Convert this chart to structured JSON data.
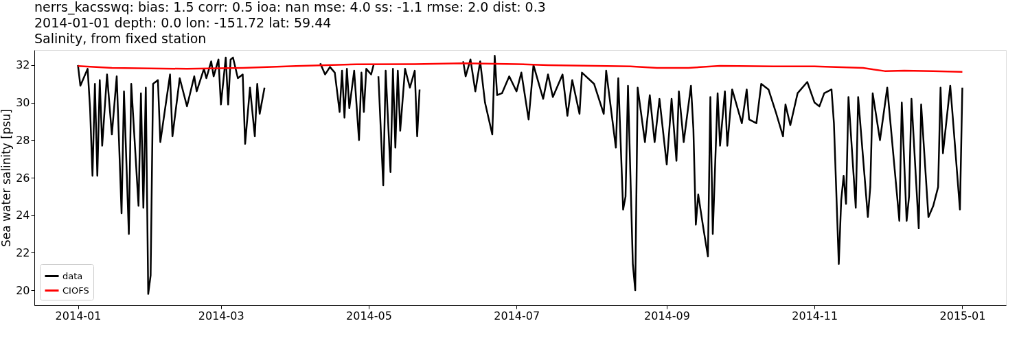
{
  "chart_data": {
    "type": "line",
    "title": "nerrs_kacsswq: bias: 1.5  corr: 0.5  ioa: nan  mse: 4.0  ss: -1.1  rmse: 2.0  dist: 0.3\n2014-01-01 depth: 0.0 lon: -151.72 lat: 59.44\nSalinity, from fixed station",
    "ylabel": "Sea water salinity [psu]",
    "xlim": [
      "2013-12-14",
      "2015-01-19"
    ],
    "ylim": [
      19.2,
      32.8
    ],
    "xticks": [
      {
        "value": "2014-01-01",
        "label": "2014-01"
      },
      {
        "value": "2014-03-01",
        "label": "2014-03"
      },
      {
        "value": "2014-05-01",
        "label": "2014-05"
      },
      {
        "value": "2014-07-01",
        "label": "2014-07"
      },
      {
        "value": "2014-09-01",
        "label": "2014-09"
      },
      {
        "value": "2014-11-01",
        "label": "2014-11"
      },
      {
        "value": "2015-01-01",
        "label": "2015-01"
      }
    ],
    "yticks": [
      20,
      22,
      24,
      26,
      28,
      30,
      32
    ],
    "grid": false,
    "legend": "bottom left",
    "line_style": "solid",
    "marker": "none",
    "series": [
      {
        "name": "data",
        "color": "#000000",
        "x": [
          "2014-01-01",
          "2014-01-02",
          "2014-01-05",
          "2014-01-06",
          "2014-01-07",
          "2014-01-08",
          "2014-01-09",
          "2014-01-10",
          "2014-01-11",
          "2014-01-13",
          "2014-01-15",
          "2014-01-17",
          "2014-01-19",
          "2014-01-20",
          "2014-01-22",
          "2014-01-23",
          "2014-01-26",
          "2014-01-27",
          "2014-01-28",
          "2014-01-29",
          "2014-01-30",
          "2014-01-31",
          "2014-02-01",
          "2014-02-03",
          "2014-02-04",
          "2014-02-08",
          "2014-02-09",
          "2014-02-12",
          "2014-02-15",
          "2014-02-18",
          "2014-02-19",
          "2014-02-22",
          "2014-02-23",
          "2014-02-25",
          "2014-02-26",
          "2014-02-28",
          "2014-03-01",
          "2014-03-03",
          "2014-03-04",
          "2014-03-05",
          "2014-03-06",
          "2014-03-08",
          "2014-03-10",
          "2014-03-11",
          "2014-03-13",
          "2014-03-15",
          "2014-03-16",
          "2014-03-17",
          "2014-03-19",
          "2014-03-20",
          "2014-04-11",
          "2014-04-13",
          "2014-04-15",
          "2014-04-17",
          "2014-04-19",
          "2014-04-20",
          "2014-04-21",
          "2014-04-22",
          "2014-04-23",
          "2014-04-25",
          "2014-04-27",
          "2014-04-28",
          "2014-04-29",
          "2014-04-30",
          "2014-05-02",
          "2014-05-03",
          "2014-05-04",
          "2014-05-05",
          "2014-05-07",
          "2014-05-08",
          "2014-05-10",
          "2014-05-11",
          "2014-05-12",
          "2014-05-13",
          "2014-05-14",
          "2014-05-16",
          "2014-05-18",
          "2014-05-20",
          "2014-05-21",
          "2014-05-22",
          "2014-05-23",
          "2014-06-09",
          "2014-06-10",
          "2014-06-12",
          "2014-06-14",
          "2014-06-16",
          "2014-06-18",
          "2014-06-21",
          "2014-06-22",
          "2014-06-23",
          "2014-06-25",
          "2014-06-28",
          "2014-07-01",
          "2014-07-03",
          "2014-07-06",
          "2014-07-08",
          "2014-07-12",
          "2014-07-14",
          "2014-07-16",
          "2014-07-20",
          "2014-07-22",
          "2014-07-24",
          "2014-07-27",
          "2014-07-28",
          "2014-08-02",
          "2014-08-06",
          "2014-08-07",
          "2014-08-11",
          "2014-08-12",
          "2014-08-14",
          "2014-08-15",
          "2014-08-16",
          "2014-08-18",
          "2014-08-19",
          "2014-08-20",
          "2014-08-23",
          "2014-08-25",
          "2014-08-27",
          "2014-08-29",
          "2014-09-01",
          "2014-09-03",
          "2014-09-05",
          "2014-09-06",
          "2014-09-08",
          "2014-09-11",
          "2014-09-12",
          "2014-09-13",
          "2014-09-14",
          "2014-09-16",
          "2014-09-18",
          "2014-09-19",
          "2014-09-20",
          "2014-09-22",
          "2014-09-23",
          "2014-09-25",
          "2014-09-26",
          "2014-09-28",
          "2014-10-02",
          "2014-10-04",
          "2014-10-05",
          "2014-10-08",
          "2014-10-10",
          "2014-10-13",
          "2014-10-16",
          "2014-10-19",
          "2014-10-20",
          "2014-10-22",
          "2014-10-25",
          "2014-10-29",
          "2014-11-01",
          "2014-11-03",
          "2014-11-05",
          "2014-11-08",
          "2014-11-09",
          "2014-11-11",
          "2014-11-12",
          "2014-11-13",
          "2014-11-14",
          "2014-11-15",
          "2014-11-18",
          "2014-11-19",
          "2014-11-23",
          "2014-11-24",
          "2014-11-25",
          "2014-11-28",
          "2014-12-01",
          "2014-12-06",
          "2014-12-07",
          "2014-12-09",
          "2014-12-10",
          "2014-12-11",
          "2014-12-14",
          "2014-12-15",
          "2014-12-18",
          "2014-12-20",
          "2014-12-22",
          "2014-12-23",
          "2014-12-24",
          "2014-12-27",
          "2014-12-28",
          "2014-12-31",
          "2015-01-01"
        ],
        "values": [
          32.0,
          30.9,
          31.8,
          29.7,
          26.1,
          31.0,
          26.1,
          31.2,
          27.7,
          31.5,
          28.3,
          31.4,
          24.1,
          30.6,
          23.0,
          31.0,
          24.5,
          30.5,
          24.4,
          30.8,
          19.8,
          20.8,
          31.0,
          31.2,
          27.9,
          31.5,
          28.2,
          31.3,
          29.8,
          31.4,
          30.6,
          31.8,
          31.3,
          32.2,
          31.4,
          32.3,
          29.9,
          32.4,
          29.9,
          32.3,
          32.4,
          31.3,
          31.5,
          27.8,
          30.8,
          28.2,
          31.0,
          29.4,
          30.8,
          null,
          32.1,
          31.5,
          31.9,
          31.6,
          29.5,
          31.7,
          29.2,
          31.8,
          29.7,
          31.7,
          28.0,
          31.6,
          29.5,
          31.8,
          31.5,
          32.0,
          null,
          31.4,
          25.6,
          31.7,
          26.3,
          31.8,
          27.6,
          31.7,
          28.5,
          31.8,
          30.8,
          31.7,
          28.2,
          30.7,
          null,
          32.2,
          31.4,
          32.3,
          30.6,
          32.2,
          30.0,
          28.3,
          32.5,
          30.4,
          30.5,
          31.4,
          30.6,
          31.6,
          29.1,
          32.0,
          30.2,
          31.5,
          30.3,
          31.5,
          29.3,
          31.2,
          29.4,
          31.6,
          31.0,
          29.4,
          31.7,
          27.6,
          31.3,
          24.3,
          25.0,
          30.9,
          21.4,
          20.0,
          30.8,
          27.9,
          30.4,
          27.9,
          30.2,
          26.7,
          30.2,
          26.9,
          30.6,
          27.9,
          30.9,
          28.6,
          23.5,
          25.1,
          23.4,
          21.8,
          30.3,
          23.0,
          30.5,
          27.7,
          30.6,
          27.7,
          30.7,
          28.9,
          30.7,
          29.1,
          28.9,
          31.0,
          30.7,
          29.5,
          28.2,
          29.9,
          28.8,
          30.5,
          31.1,
          30.0,
          29.8,
          30.5,
          30.7,
          28.9,
          21.4,
          24.8,
          26.1,
          24.6,
          30.3,
          24.4,
          30.3,
          23.9,
          25.5,
          30.5,
          28.0,
          30.8,
          23.7,
          30.0,
          23.7,
          25.0,
          30.2,
          23.3,
          29.9,
          23.9,
          24.5,
          25.5,
          30.8,
          27.3,
          30.9,
          29.3,
          24.3,
          30.8
        ]
      },
      {
        "name": "CIOFS",
        "color": "#ff0000",
        "x": [
          "2014-01-01",
          "2014-01-15",
          "2014-02-15",
          "2014-03-10",
          "2014-04-01",
          "2014-04-26",
          "2014-05-20",
          "2014-06-09",
          "2014-07-01",
          "2014-07-14",
          "2014-08-17",
          "2014-08-28",
          "2014-09-10",
          "2014-09-23",
          "2014-10-15",
          "2014-11-01",
          "2014-11-21",
          "2014-11-30",
          "2014-12-08",
          "2014-12-20",
          "2015-01-01"
        ],
        "values": [
          31.95,
          31.85,
          31.8,
          31.85,
          31.95,
          32.04,
          32.05,
          32.1,
          32.05,
          32.0,
          31.93,
          31.85,
          31.85,
          31.96,
          31.93,
          31.93,
          31.85,
          31.68,
          31.7,
          31.68,
          31.64
        ]
      }
    ]
  }
}
